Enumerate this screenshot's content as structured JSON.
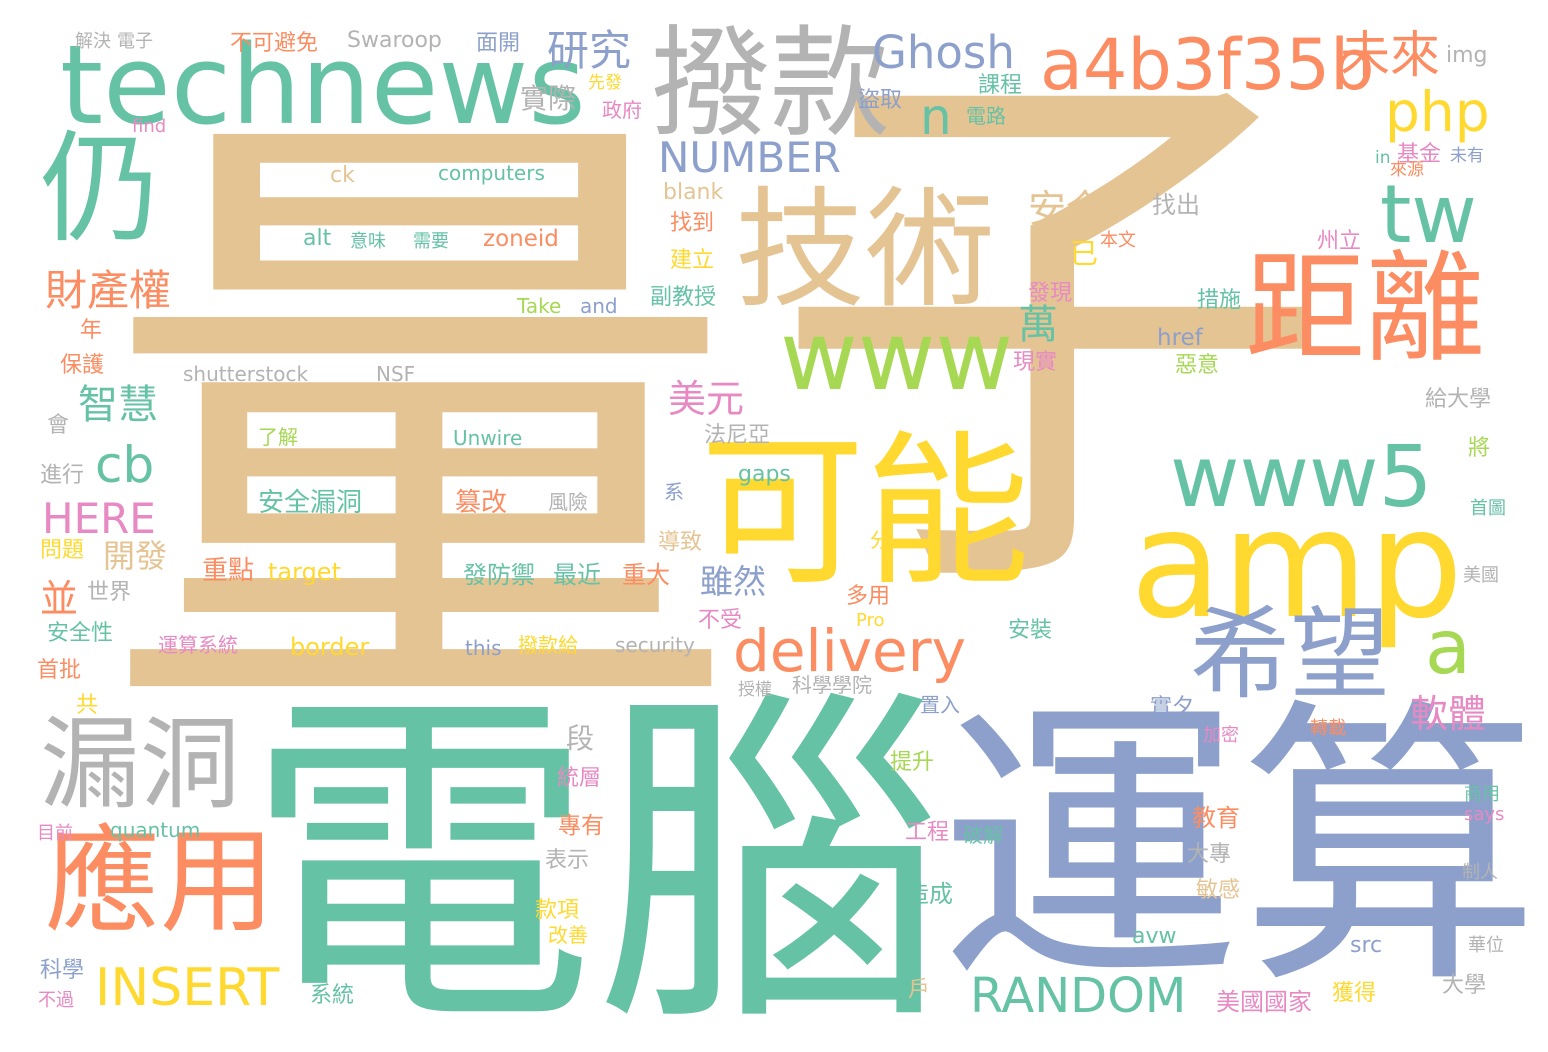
{
  "palette": {
    "tan": "#e5c494",
    "green": "#66c2a5",
    "blue": "#8da0cb",
    "orange": "#fc8d62",
    "yellow": "#ffd92f",
    "lime": "#a6d854",
    "pink": "#e78ac3",
    "gray": "#b3b3b3"
  },
  "words": [
    {
      "text": "量",
      "color": "tan"
    },
    {
      "text": "子",
      "color": "tan"
    },
    {
      "text": "電腦",
      "color": "green"
    },
    {
      "text": "運算",
      "color": "blue"
    },
    {
      "text": "amp",
      "color": "yellow"
    },
    {
      "text": "可能",
      "color": "yellow"
    },
    {
      "text": "technews",
      "color": "green"
    },
    {
      "text": "撥款",
      "color": "gray"
    },
    {
      "text": "技術",
      "color": "tan"
    },
    {
      "text": "仍",
      "color": "green"
    },
    {
      "text": "距離",
      "color": "orange"
    },
    {
      "text": "應用",
      "color": "orange"
    },
    {
      "text": "漏洞",
      "color": "gray"
    },
    {
      "text": "希望",
      "color": "blue"
    },
    {
      "text": "www",
      "color": "lime"
    },
    {
      "text": "www5",
      "color": "green"
    },
    {
      "text": "a4b3f35b",
      "color": "orange"
    },
    {
      "text": "未來",
      "color": "orange"
    },
    {
      "text": "tw",
      "color": "green"
    },
    {
      "text": "php",
      "color": "yellow"
    },
    {
      "text": "Ghosh",
      "color": "blue"
    },
    {
      "text": "研究",
      "color": "blue"
    },
    {
      "text": "delivery",
      "color": "orange"
    },
    {
      "text": "RANDOM",
      "color": "green"
    },
    {
      "text": "INSERT",
      "color": "yellow"
    },
    {
      "text": "NUMBER",
      "color": "blue"
    },
    {
      "text": "a",
      "color": "lime"
    },
    {
      "text": "n",
      "color": "green"
    },
    {
      "text": "cb",
      "color": "green"
    },
    {
      "text": "財產權",
      "color": "orange"
    },
    {
      "text": "安全",
      "color": "tan"
    },
    {
      "text": "智慧",
      "color": "green"
    },
    {
      "text": "HERE",
      "color": "pink"
    },
    {
      "text": "美元",
      "color": "pink"
    },
    {
      "text": "軟體",
      "color": "pink"
    },
    {
      "text": "萬",
      "color": "green"
    },
    {
      "text": "並",
      "color": "orange"
    },
    {
      "text": "開發",
      "color": "tan"
    },
    {
      "text": "雖然",
      "color": "blue"
    },
    {
      "text": "段",
      "color": "gray"
    },
    {
      "text": "實際",
      "color": "gray"
    },
    {
      "text": "不可避免",
      "color": "orange"
    },
    {
      "text": "Swaroop",
      "color": "gray"
    },
    {
      "text": "面開",
      "color": "blue"
    },
    {
      "text": "解決",
      "color": "gray"
    },
    {
      "text": "電子",
      "color": "gray"
    },
    {
      "text": "img",
      "color": "gray"
    },
    {
      "text": "ck",
      "color": "tan"
    },
    {
      "text": "computers",
      "color": "green"
    },
    {
      "text": "blank",
      "color": "tan"
    },
    {
      "text": "alt",
      "color": "green"
    },
    {
      "text": "意味",
      "color": "green"
    },
    {
      "text": "需要",
      "color": "green"
    },
    {
      "text": "zoneid",
      "color": "orange"
    },
    {
      "text": "找到",
      "color": "orange"
    },
    {
      "text": "建立",
      "color": "yellow"
    },
    {
      "text": "副教授",
      "color": "green"
    },
    {
      "text": "Take",
      "color": "lime"
    },
    {
      "text": "and",
      "color": "blue"
    },
    {
      "text": "shutterstock",
      "color": "gray"
    },
    {
      "text": "NSF",
      "color": "gray"
    },
    {
      "text": "了解",
      "color": "lime"
    },
    {
      "text": "Unwire",
      "color": "green"
    },
    {
      "text": "法尼亞",
      "color": "gray"
    },
    {
      "text": "安全漏洞",
      "color": "green"
    },
    {
      "text": "篡改",
      "color": "orange"
    },
    {
      "text": "風險",
      "color": "gray"
    },
    {
      "text": "gaps",
      "color": "green"
    },
    {
      "text": "重點",
      "color": "orange"
    },
    {
      "text": "target",
      "color": "yellow"
    },
    {
      "text": "發防禦",
      "color": "green"
    },
    {
      "text": "最近",
      "color": "green"
    },
    {
      "text": "重大",
      "color": "orange"
    },
    {
      "text": "border",
      "color": "yellow"
    },
    {
      "text": "this",
      "color": "blue"
    },
    {
      "text": "撥款給",
      "color": "yellow"
    },
    {
      "text": "security",
      "color": "gray"
    },
    {
      "text": "運算系統",
      "color": "pink"
    },
    {
      "text": "quantum",
      "color": "green"
    },
    {
      "text": "統層",
      "color": "pink"
    },
    {
      "text": "專有",
      "color": "orange"
    },
    {
      "text": "表示",
      "color": "gray"
    },
    {
      "text": "款項",
      "color": "yellow"
    },
    {
      "text": "改善",
      "color": "yellow"
    },
    {
      "text": "系統",
      "color": "green"
    },
    {
      "text": "美國國家",
      "color": "pink"
    },
    {
      "text": "獲得",
      "color": "yellow"
    },
    {
      "text": "大學",
      "color": "gray"
    },
    {
      "text": "制人",
      "color": "gray"
    },
    {
      "text": "華位",
      "color": "gray"
    },
    {
      "text": "src",
      "color": "blue"
    },
    {
      "text": "avw",
      "color": "green"
    },
    {
      "text": "says",
      "color": "pink"
    },
    {
      "text": "商用",
      "color": "green"
    },
    {
      "text": "教育",
      "color": "orange"
    },
    {
      "text": "大專",
      "color": "gray"
    },
    {
      "text": "敏感",
      "color": "tan"
    },
    {
      "text": "造成",
      "color": "green"
    },
    {
      "text": "工程",
      "color": "pink"
    },
    {
      "text": "破解",
      "color": "green"
    },
    {
      "text": "提升",
      "color": "lime"
    },
    {
      "text": "置入",
      "color": "blue"
    },
    {
      "text": "實夕",
      "color": "blue"
    },
    {
      "text": "加密",
      "color": "pink"
    },
    {
      "text": "轉載",
      "color": "orange"
    },
    {
      "text": "授權",
      "color": "gray"
    },
    {
      "text": "科學學院",
      "color": "gray"
    },
    {
      "text": "多用",
      "color": "orange"
    },
    {
      "text": "Pro",
      "color": "yellow"
    },
    {
      "text": "安裝",
      "color": "green"
    },
    {
      "text": "不受",
      "color": "pink"
    },
    {
      "text": "導致",
      "color": "tan"
    },
    {
      "text": "分",
      "color": "yellow"
    },
    {
      "text": "系",
      "color": "blue"
    },
    {
      "text": "課程",
      "color": "green"
    },
    {
      "text": "電路",
      "color": "green"
    },
    {
      "text": "盜取",
      "color": "blue"
    },
    {
      "text": "先發",
      "color": "yellow"
    },
    {
      "text": "政府",
      "color": "pink"
    },
    {
      "text": "find",
      "color": "pink"
    },
    {
      "text": "in",
      "color": "green"
    },
    {
      "text": "基金",
      "color": "pink"
    },
    {
      "text": "未有",
      "color": "blue"
    },
    {
      "text": "來源",
      "color": "orange"
    },
    {
      "text": "找出",
      "color": "gray"
    },
    {
      "text": "本文",
      "color": "orange"
    },
    {
      "text": "州立",
      "color": "pink"
    },
    {
      "text": "已",
      "color": "yellow"
    },
    {
      "text": "發現",
      "color": "pink"
    },
    {
      "text": "措施",
      "color": "green"
    },
    {
      "text": "href",
      "color": "blue"
    },
    {
      "text": "現實",
      "color": "pink"
    },
    {
      "text": "惡意",
      "color": "lime"
    },
    {
      "text": "給大學",
      "color": "gray"
    },
    {
      "text": "將",
      "color": "lime"
    },
    {
      "text": "首圖",
      "color": "green"
    },
    {
      "text": "美國",
      "color": "gray"
    },
    {
      "text": "年",
      "color": "orange"
    },
    {
      "text": "保護",
      "color": "orange"
    },
    {
      "text": "會",
      "color": "gray"
    },
    {
      "text": "進行",
      "color": "gray"
    },
    {
      "text": "問題",
      "color": "yellow"
    },
    {
      "text": "世界",
      "color": "gray"
    },
    {
      "text": "安全性",
      "color": "green"
    },
    {
      "text": "首批",
      "color": "orange"
    },
    {
      "text": "共",
      "color": "yellow"
    },
    {
      "text": "目前",
      "color": "pink"
    },
    {
      "text": "科學",
      "color": "blue"
    },
    {
      "text": "不過",
      "color": "pink"
    },
    {
      "text": "戶",
      "color": "tan"
    }
  ]
}
